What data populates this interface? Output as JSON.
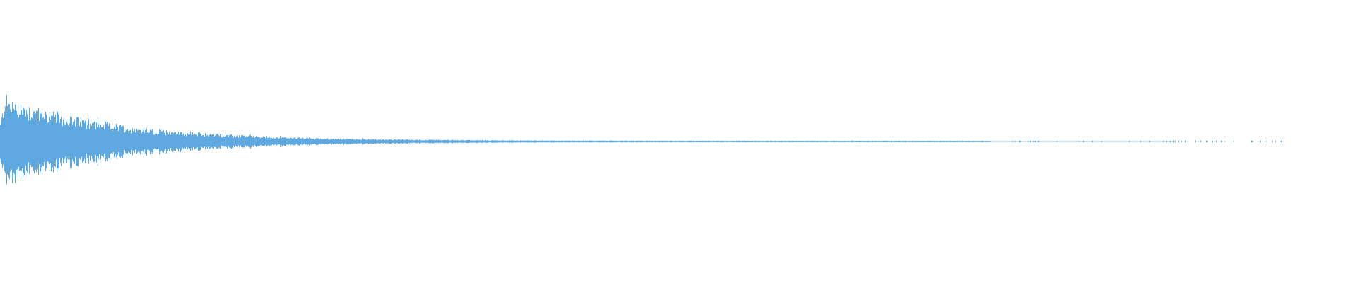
{
  "waveform": {
    "color": "#5fa8e0"
  }
}
